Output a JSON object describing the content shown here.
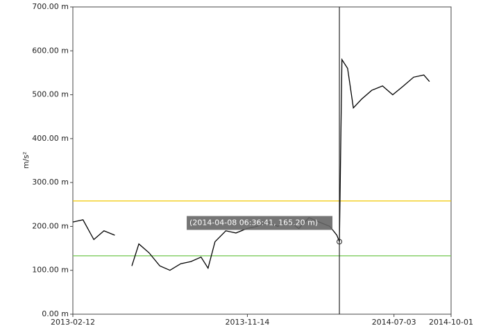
{
  "chart_data": {
    "type": "line",
    "y_label": "m/s²",
    "series": [
      {
        "color": "#000000",
        "x": [
          "2013-02-12",
          "2013-02-28",
          "2013-03-17",
          "2013-04-02",
          "2013-04-19",
          "2013-05-05",
          "2013-05-16",
          "2013-05-27",
          "2013-06-12",
          "2013-06-29",
          "2013-07-15",
          "2013-08-01",
          "2013-08-17",
          "2013-09-02",
          "2013-09-13",
          "2013-09-24",
          "2013-10-11",
          "2013-10-27",
          "2013-11-13",
          "2013-11-29",
          "2013-12-15",
          "2014-01-01",
          "2014-01-17",
          "2014-02-03",
          "2014-02-19",
          "2014-03-07",
          "2014-03-24",
          "2014-04-04",
          "2014-04-08",
          "2014-04-12",
          "2014-04-21",
          "2014-04-30",
          "2014-05-13",
          "2014-05-29",
          "2014-06-15",
          "2014-07-01",
          "2014-07-18",
          "2014-08-03",
          "2014-08-19",
          "2014-08-28"
        ],
        "values": [
          210,
          215,
          170,
          190,
          180,
          null,
          110,
          160,
          140,
          110,
          100,
          115,
          120,
          130,
          105,
          165,
          190,
          185,
          195,
          200,
          210,
          200,
          215,
          195,
          220,
          210,
          200,
          180,
          165.2,
          580,
          560,
          470,
          490,
          510,
          520,
          500,
          520,
          540,
          545,
          530
        ]
      }
    ],
    "thresholds": [
      {
        "value": 258,
        "color": "#f0c800"
      },
      {
        "value": 133,
        "color": "#7ccc5c"
      }
    ],
    "cursor": {
      "x": "2014-04-08",
      "y": 165.2,
      "label": "(2014-04-08 06:36:41, 165.20 m)"
    },
    "xlim": [
      "2013-02-12",
      "2014-10-01"
    ],
    "xticks": [
      "2013-02-12",
      "2013-11-14",
      "2014-07-03",
      "2014-10-01"
    ],
    "ylim": [
      0,
      700
    ],
    "yticks": [
      {
        "value": 0,
        "label": "0.00 m"
      },
      {
        "value": 100,
        "label": "100.00 m"
      },
      {
        "value": 200,
        "label": "200.00 m"
      },
      {
        "value": 300,
        "label": "300.00 m"
      },
      {
        "value": 400,
        "label": "400.00 m"
      },
      {
        "value": 500,
        "label": "500.00 m"
      },
      {
        "value": 600,
        "label": "600.00 m"
      },
      {
        "value": 700,
        "label": "700.00 m"
      }
    ]
  }
}
